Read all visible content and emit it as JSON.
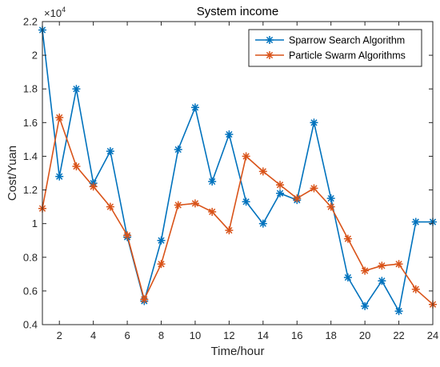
{
  "chart_data": {
    "type": "line",
    "title": "System income",
    "xlabel": "Time/hour",
    "ylabel": "Cost/Yuan",
    "exponent_label": "×10",
    "exponent_power": "4",
    "xlim": [
      1,
      24
    ],
    "ylim": [
      0.4,
      2.2
    ],
    "x_ticks": [
      2,
      4,
      6,
      8,
      10,
      12,
      14,
      16,
      18,
      20,
      22,
      24
    ],
    "y_ticks": [
      0.4,
      0.6,
      0.8,
      1,
      1.2,
      1.4,
      1.6,
      1.8,
      2,
      2.2
    ],
    "y_tick_labels": [
      "0.4",
      "0.6",
      "0.8",
      "1",
      "1.2",
      "1.4",
      "1.6",
      "1.8",
      "2",
      "2.2"
    ],
    "x": [
      1,
      2,
      3,
      4,
      5,
      6,
      7,
      8,
      9,
      10,
      11,
      12,
      13,
      14,
      15,
      16,
      17,
      18,
      19,
      20,
      21,
      22,
      23,
      24
    ],
    "legend_position": "top-right",
    "series": [
      {
        "name": "Sparrow Search Algorithm",
        "color": "#0072BD",
        "marker": "asterisk",
        "values": [
          2.15,
          1.28,
          1.8,
          1.24,
          1.43,
          0.92,
          0.54,
          0.9,
          1.44,
          1.69,
          1.25,
          1.53,
          1.13,
          1.0,
          1.18,
          1.14,
          1.6,
          1.15,
          0.68,
          0.51,
          0.66,
          0.48,
          1.01,
          1.01
        ]
      },
      {
        "name": "Particle Swarm Algorithms",
        "color": "#D95319",
        "marker": "asterisk",
        "values": [
          1.09,
          1.63,
          1.34,
          1.22,
          1.1,
          0.93,
          0.55,
          0.76,
          1.11,
          1.12,
          1.07,
          0.96,
          1.4,
          1.31,
          1.23,
          1.15,
          1.21,
          1.1,
          0.91,
          0.72,
          0.75,
          0.76,
          0.61,
          0.52
        ]
      }
    ]
  }
}
